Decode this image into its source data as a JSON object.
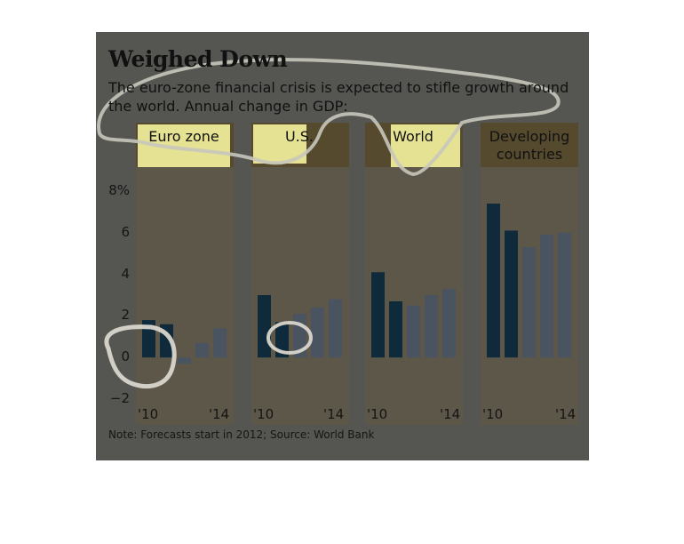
{
  "title": "Weighed Down",
  "subtitle": "The euro-zone financial crisis is expected to stifle growth around the world. Annual change in GDP:",
  "note": "Note: Forecasts start in 2012; Source: World Bank",
  "colors": {
    "card_background": "#555551",
    "panel_background": "#5d574a",
    "panel_header": "#554a2d",
    "actual_bar": "#0f2a3a",
    "forecast_bar": "#4a5460",
    "highlight": "#f5f3a0"
  },
  "chart_data": {
    "type": "bar",
    "unit": "%",
    "y_ticks": [
      "8%",
      "6",
      "4",
      "2",
      "0",
      "−2"
    ],
    "ylim": [
      -2,
      8
    ],
    "x_tick_labels": [
      "'10",
      "'14"
    ],
    "categories": [
      "2010",
      "2011",
      "2012",
      "2013",
      "2014"
    ],
    "forecast_start": "2012",
    "panels": [
      {
        "name": "Euro zone",
        "values": [
          1.8,
          1.6,
          -0.3,
          0.7,
          1.4
        ]
      },
      {
        "name": "U.S.",
        "values": [
          3.0,
          1.7,
          2.1,
          2.4,
          2.8
        ]
      },
      {
        "name": "World",
        "values": [
          4.1,
          2.7,
          2.5,
          3.0,
          3.3
        ]
      },
      {
        "name": "Developing countries",
        "values": [
          7.4,
          6.1,
          5.3,
          5.9,
          6.0
        ]
      }
    ]
  }
}
